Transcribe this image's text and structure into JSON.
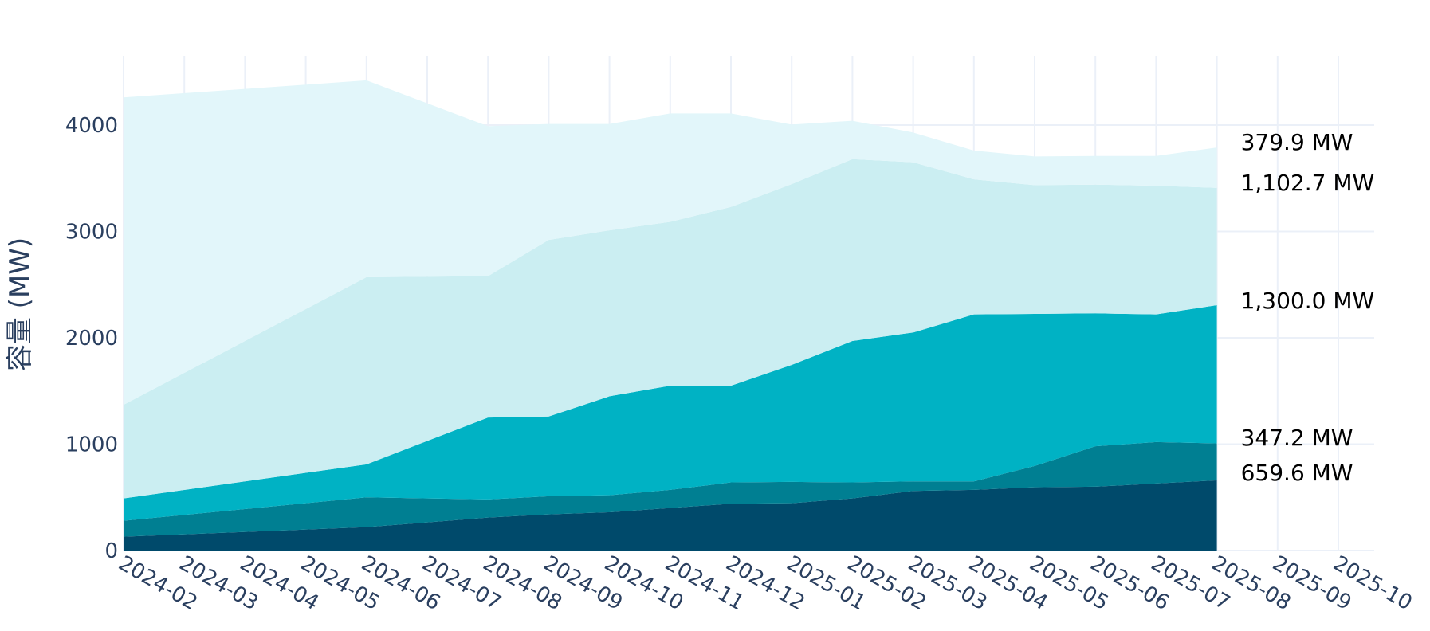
{
  "chart_data": {
    "type": "area",
    "stacked": true,
    "ylabel": "容量 (MW)",
    "ylim": [
      0,
      4600
    ],
    "y_ticks": [
      0,
      1000,
      2000,
      3000,
      4000
    ],
    "x_tick_labels": [
      "2024-02",
      "2024-03",
      "2024-04",
      "2024-05",
      "2024-06",
      "2024-07",
      "2024-08",
      "2024-09",
      "2024-10",
      "2024-11",
      "2024-12",
      "2025-01",
      "2025-02",
      "2025-03",
      "2025-04",
      "2025-05",
      "2025-06",
      "2025-07",
      "2025-08",
      "2025-09",
      "2025-10"
    ],
    "x": [
      "2024-02",
      "2024-06",
      "2024-08",
      "2024-09",
      "2024-10",
      "2024-11",
      "2024-12",
      "2025-01",
      "2025-02",
      "2025-03",
      "2025-04",
      "2025-05",
      "2025-06",
      "2025-07",
      "2025-08"
    ],
    "grid": true,
    "series": [
      {
        "color": "#004a6b",
        "values": [
          130,
          220,
          310,
          340,
          360,
          400,
          440,
          445,
          490,
          560,
          570,
          595,
          600,
          630,
          659.6
        ]
      },
      {
        "color": "#007f92",
        "values": [
          150,
          280,
          170,
          170,
          160,
          170,
          200,
          200,
          150,
          90,
          80,
          200,
          380,
          390,
          347.2
        ]
      },
      {
        "color": "#00b2c4",
        "values": [
          210,
          310,
          770,
          750,
          930,
          980,
          910,
          1100,
          1330,
          1400,
          1570,
          1430,
          1250,
          1200,
          1300.0
        ]
      },
      {
        "color": "#cbeef2",
        "values": [
          880,
          1760,
          1330,
          1660,
          1560,
          1540,
          1680,
          1700,
          1710,
          1600,
          1270,
          1210,
          1210,
          1210,
          1102.7
        ]
      },
      {
        "color": "#e2f6fa",
        "values": [
          2890,
          1850,
          1410,
          1090,
          1000,
          1020,
          880,
          560,
          360,
          280,
          270,
          270,
          270,
          280,
          379.9
        ]
      }
    ],
    "end_labels": [
      "659.6 MW",
      "347.2 MW",
      "1,300.0 MW",
      "1,102.7 MW",
      "379.9 MW"
    ]
  }
}
